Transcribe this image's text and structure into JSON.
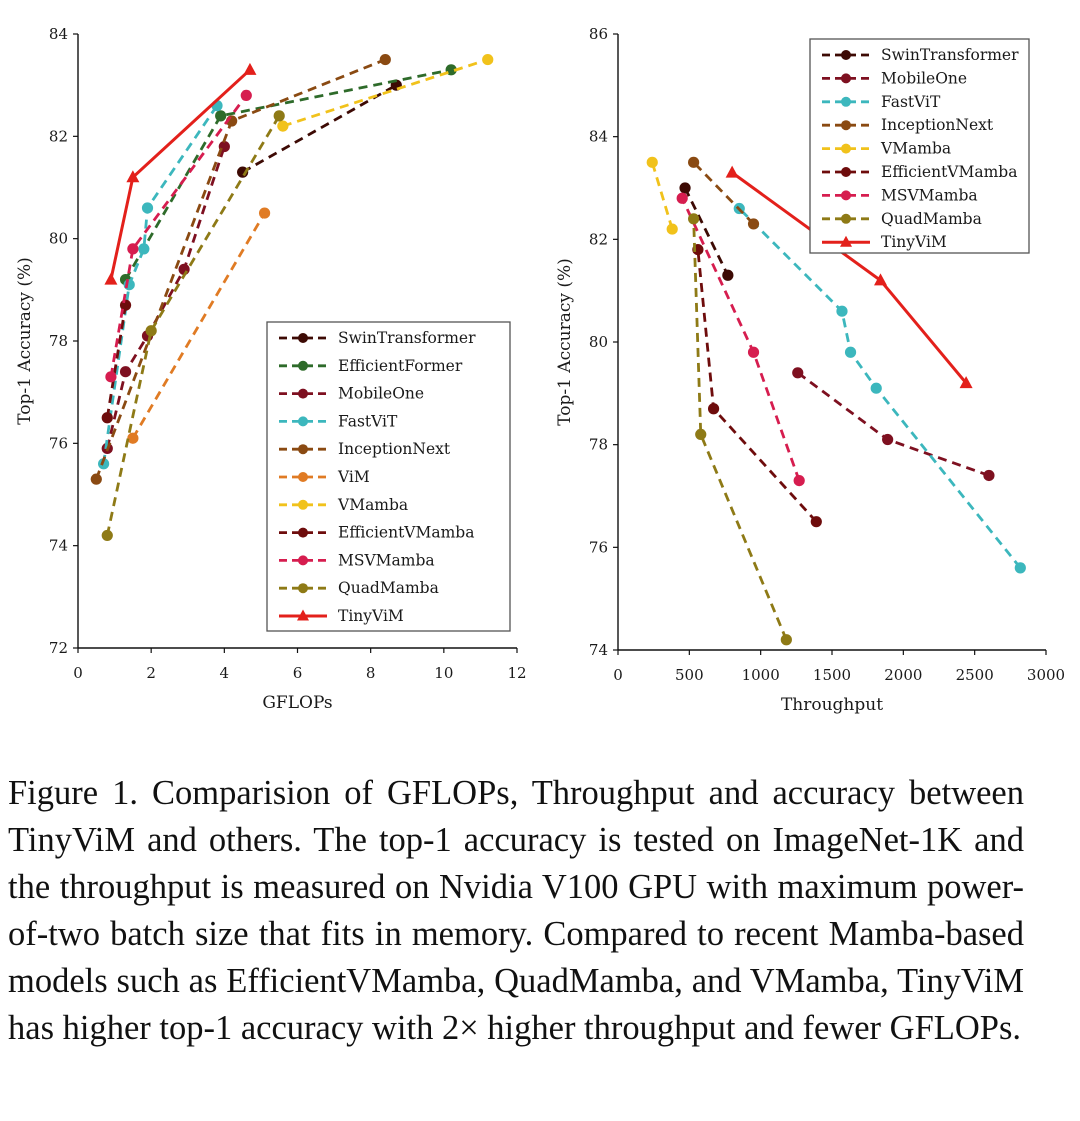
{
  "colors": {
    "SwinTransformer": "#3d0a04",
    "EfficientFormer": "#2e6b2a",
    "MobileOne": "#7e1020",
    "FastViT": "#3cb7bd",
    "InceptionNext": "#8a4a12",
    "ViM": "#e07b24",
    "VMamba": "#f1c21b",
    "EfficientVMamba": "#6e0c0c",
    "MSVMamba": "#d61d4f",
    "QuadMamba": "#8e7a16",
    "TinyViM": "#e3201b"
  },
  "chart_data": [
    {
      "type": "line",
      "xlabel": "GFLOPs",
      "ylabel": "Top-1 Accuracy (%)",
      "xlim": [
        0,
        12
      ],
      "ylim": [
        72,
        84
      ],
      "xticks": [
        0,
        2,
        4,
        6,
        8,
        10,
        12
      ],
      "yticks": [
        72,
        74,
        76,
        78,
        80,
        82,
        84
      ],
      "legend_position": "bottom-right",
      "series": [
        {
          "name": "SwinTransformer",
          "marker": "circle",
          "x": [
            4.5,
            8.7
          ],
          "y": [
            81.3,
            83.0
          ]
        },
        {
          "name": "EfficientFormer",
          "marker": "circle",
          "x": [
            1.3,
            3.9,
            10.2
          ],
          "y": [
            79.2,
            82.4,
            83.3
          ]
        },
        {
          "name": "MobileOne",
          "marker": "circle",
          "x": [
            0.8,
            1.3,
            1.9,
            2.9,
            4.0
          ],
          "y": [
            75.9,
            77.4,
            78.1,
            79.4,
            81.8
          ]
        },
        {
          "name": "FastViT",
          "marker": "circle",
          "x": [
            0.7,
            1.4,
            1.8,
            1.9,
            3.8
          ],
          "y": [
            75.6,
            79.1,
            79.8,
            80.6,
            82.6
          ]
        },
        {
          "name": "InceptionNext",
          "marker": "circle",
          "x": [
            0.5,
            4.2,
            8.4
          ],
          "y": [
            75.3,
            82.3,
            83.5
          ]
        },
        {
          "name": "ViM",
          "marker": "circle",
          "x": [
            1.5,
            5.1
          ],
          "y": [
            76.1,
            80.5
          ]
        },
        {
          "name": "VMamba",
          "marker": "circle",
          "x": [
            5.6,
            11.2
          ],
          "y": [
            82.2,
            83.5
          ]
        },
        {
          "name": "EfficientVMamba",
          "marker": "circle",
          "x": [
            0.8,
            1.3
          ],
          "y": [
            76.5,
            78.7
          ]
        },
        {
          "name": "MSVMamba",
          "marker": "circle",
          "x": [
            0.9,
            1.5,
            4.6
          ],
          "y": [
            77.3,
            79.8,
            82.8
          ]
        },
        {
          "name": "QuadMamba",
          "marker": "circle",
          "x": [
            0.8,
            2.0,
            5.5
          ],
          "y": [
            74.2,
            78.2,
            82.4
          ]
        },
        {
          "name": "TinyViM",
          "marker": "triangle",
          "dash": "solid",
          "x": [
            0.9,
            1.5,
            4.7
          ],
          "y": [
            79.2,
            81.2,
            83.3
          ]
        }
      ]
    },
    {
      "type": "line",
      "xlabel": "Throughput",
      "ylabel": "Top-1 Accuracy (%)",
      "xlim": [
        0,
        3000
      ],
      "ylim": [
        74,
        86
      ],
      "xticks": [
        0,
        500,
        1000,
        1500,
        2000,
        2500,
        3000
      ],
      "yticks": [
        74,
        76,
        78,
        80,
        82,
        84,
        86
      ],
      "legend_position": "top-right",
      "series": [
        {
          "name": "SwinTransformer",
          "marker": "circle",
          "x": [
            470,
            770
          ],
          "y": [
            83.0,
            81.3
          ]
        },
        {
          "name": "MobileOne",
          "marker": "circle",
          "x": [
            2600,
            1890,
            1260
          ],
          "y": [
            77.4,
            78.1,
            79.4
          ]
        },
        {
          "name": "FastViT",
          "marker": "circle",
          "x": [
            2820,
            1810,
            1630,
            1570,
            850
          ],
          "y": [
            75.6,
            79.1,
            79.8,
            80.6,
            82.6
          ]
        },
        {
          "name": "InceptionNext",
          "marker": "circle",
          "x": [
            950,
            530
          ],
          "y": [
            82.3,
            83.5
          ]
        },
        {
          "name": "VMamba",
          "marker": "circle",
          "x": [
            380,
            240
          ],
          "y": [
            82.2,
            83.5
          ]
        },
        {
          "name": "EfficientVMamba",
          "marker": "circle",
          "x": [
            1390,
            670,
            560
          ],
          "y": [
            76.5,
            78.7,
            81.8
          ]
        },
        {
          "name": "MSVMamba",
          "marker": "circle",
          "x": [
            1270,
            950,
            450
          ],
          "y": [
            77.3,
            79.8,
            82.8
          ]
        },
        {
          "name": "QuadMamba",
          "marker": "circle",
          "x": [
            1180,
            580,
            530
          ],
          "y": [
            74.2,
            78.2,
            82.4
          ]
        },
        {
          "name": "TinyViM",
          "marker": "triangle",
          "dash": "solid",
          "x": [
            2440,
            1840,
            800
          ],
          "y": [
            79.2,
            81.2,
            83.3
          ]
        }
      ]
    }
  ],
  "caption": "Figure 1.  Comparision of GFLOPs, Throughput and accuracy between TinyViM and others.  The top-1 accuracy is tested on ImageNet-1K and the throughput is measured on Nvidia V100 GPU with maximum power-of-two batch size that fits in memory. Compared to recent Mamba-based models such as EfficientVMamba, QuadMamba, and VMamba, TinyViM has higher top-1 accuracy with 2× higher throughput and fewer GFLOPs."
}
